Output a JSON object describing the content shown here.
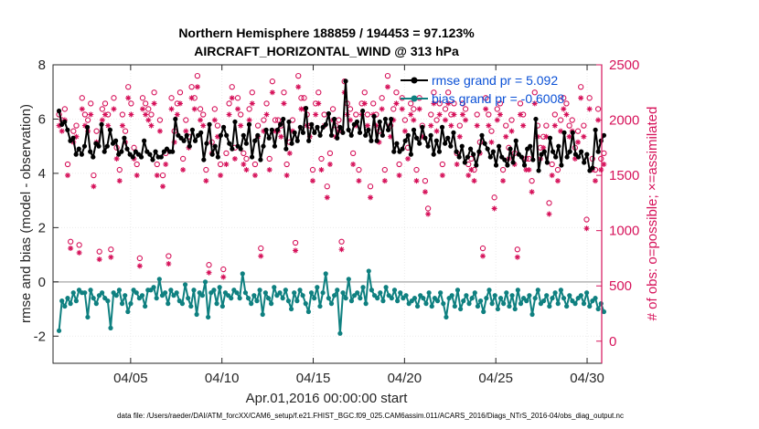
{
  "chart_data": {
    "type": "line",
    "title": [
      "Northern Hemisphere 188859 / 194453 = 97.123%",
      "AIRCRAFT_HORIZONTAL_WIND @ 313 hPa"
    ],
    "xlabel": "Apr.01,2016 00:00:00 start",
    "ylabel_left": "rmse and bias (model - observation)",
    "ylabel_right": "# of obs: o=possible; ×=assimilated",
    "footer": "data file: /Users/raeder/DAI/ATM_forcXX/CAM6_setup/f.e21.FHIST_BGC.f09_025.CAM6assim.011/ACARS_2016/Diags_NTrS_2016-04/obs_diag_output.nc",
    "xlim": [
      0.75,
      30.8
    ],
    "ylim_left": [
      -3,
      8
    ],
    "ylim_right": [
      -200,
      2500
    ],
    "x_ticks": [
      5,
      10,
      15,
      20,
      25,
      30
    ],
    "x_tick_labels": [
      "04/05",
      "04/10",
      "04/15",
      "04/20",
      "04/25",
      "04/30"
    ],
    "y_left_ticks": [
      -2,
      0,
      2,
      4,
      6,
      8
    ],
    "y_left_tick_labels": [
      "-2",
      "0",
      "2",
      "4",
      "6",
      "8"
    ],
    "y_right_ticks": [
      0,
      500,
      1000,
      1500,
      2000,
      2500
    ],
    "y_right_tick_labels": [
      "0",
      "500",
      "1000",
      "1500",
      "2000",
      "2500"
    ],
    "zero_line": 0,
    "colors": {
      "rmse": "#000000",
      "bias": "#0f8080",
      "obs": "#d6125a",
      "legend_text": "#0a50d6",
      "zero": "#b4b4b4"
    },
    "legend": [
      {
        "name": "rmse",
        "label": "rmse grand pr = 5.092"
      },
      {
        "name": "bias",
        "label": "bias grand pr = -0.6008"
      }
    ],
    "series": [
      {
        "name": "rmse",
        "values": [
          6.3,
          5.8,
          5.9,
          5.6,
          5.2,
          5.3,
          4.7,
          4.9,
          4.7,
          5.0,
          5.7,
          4.8,
          4.6,
          5.1,
          5.0,
          5.8,
          4.8,
          5.0,
          5.6,
          5.1,
          5.2,
          4.7,
          4.8,
          5.3,
          4.9,
          4.7,
          4.6,
          4.8,
          4.7,
          4.6,
          5.2,
          4.8,
          4.7,
          4.5,
          4.8,
          4.6,
          4.6,
          4.8,
          4.9,
          4.8,
          4.8,
          6.0,
          5.4,
          5.3,
          5.2,
          5.4,
          5.0,
          5.6,
          5.2,
          5.4,
          5.5,
          4.5,
          5.1,
          5.8,
          4.7,
          5.0,
          4.6,
          5.4,
          5.7,
          5.4,
          5.1,
          4.9,
          5.9,
          5.0,
          4.9,
          5.4,
          5.1,
          5.8,
          4.6,
          5.2,
          5.4,
          4.5,
          5.0,
          5.6,
          5.3,
          5.6,
          5.0,
          5.6,
          5.8,
          6.0,
          4.9,
          5.9,
          5.1,
          5.5,
          5.2,
          5.7,
          5.5,
          6.4,
          5.2,
          5.8,
          5.5,
          5.7,
          5.4,
          5.7,
          5.8,
          6.2,
          5.4,
          6.0,
          5.3,
          5.7,
          5.5,
          7.4,
          5.6,
          5.4,
          5.8,
          5.9,
          5.5,
          6.3,
          5.4,
          5.6,
          5.2,
          6.1,
          5.2,
          5.9,
          5.4,
          6.0,
          5.6,
          6.0,
          4.8,
          5.1,
          4.8,
          4.9,
          5.2,
          5.4,
          4.7,
          5.6,
          5.3,
          5.1,
          5.7,
          5.3,
          5.0,
          5.4,
          4.7,
          5.2,
          4.8,
          5.7,
          5.1,
          5.3,
          5.0,
          5.5,
          4.8,
          4.6,
          5.0,
          4.4,
          4.6,
          4.9,
          4.7,
          4.3,
          4.8,
          5.4,
          5.1,
          4.9,
          4.6,
          4.8,
          4.3,
          5.0,
          4.6,
          4.5,
          4.3,
          4.9,
          4.4,
          5.2,
          4.7,
          4.6,
          4.3,
          4.9,
          5.0,
          4.5,
          6.0,
          4.1,
          4.7,
          4.8,
          4.4,
          5.3,
          4.8,
          4.6,
          5.0,
          4.3,
          5.5,
          4.6,
          4.8,
          5.5,
          4.7,
          4.6,
          4.8,
          4.4,
          4.7,
          4.1,
          4.2,
          5.6,
          4.8,
          5.2,
          5.4
        ]
      },
      {
        "name": "bias",
        "values": [
          -1.8,
          -0.7,
          -0.9,
          -0.6,
          -0.8,
          -0.4,
          -0.7,
          -0.3,
          -0.4,
          -0.4,
          -1.3,
          -0.3,
          -0.6,
          -0.8,
          -0.5,
          -0.4,
          -0.6,
          -0.7,
          -1.7,
          -0.4,
          -0.5,
          -0.3,
          -0.8,
          -0.5,
          -1.1,
          -0.8,
          -0.3,
          -0.4,
          -0.6,
          -0.5,
          -0.9,
          -0.3,
          -0.3,
          -0.2,
          -0.6,
          0.1,
          -0.5,
          -0.4,
          -0.8,
          -0.3,
          -0.5,
          -0.4,
          -0.7,
          -0.8,
          -0.1,
          -0.6,
          -0.9,
          -0.3,
          -1.2,
          -0.4,
          -0.5,
          0.0,
          -1.3,
          -0.4,
          -0.3,
          -0.8,
          -0.2,
          -0.9,
          -0.4,
          -0.5,
          -0.6,
          -0.3,
          -0.4,
          -0.6,
          0.3,
          -0.4,
          -0.6,
          -0.8,
          -0.5,
          -0.7,
          -0.3,
          -1.2,
          -0.4,
          -0.6,
          -0.8,
          -0.2,
          -0.5,
          -0.4,
          -0.6,
          -0.3,
          -0.7,
          -1.0,
          -0.4,
          -0.7,
          -0.3,
          -0.5,
          -0.8,
          -1.1,
          -0.4,
          -0.6,
          -0.2,
          -0.9,
          -0.4,
          0.3,
          -0.6,
          -0.8,
          -0.5,
          -0.3,
          -1.9,
          -0.4,
          -0.6,
          0.1,
          -0.7,
          -0.5,
          -0.4,
          -0.6,
          -0.2,
          -0.8,
          0.4,
          -0.3,
          -0.5,
          -0.6,
          -0.4,
          -0.7,
          -0.2,
          -0.5,
          -0.6,
          -0.3,
          -0.7,
          -0.4,
          -0.6,
          -0.5,
          -0.8,
          -0.7,
          -0.6,
          -0.9,
          -0.5,
          -0.6,
          -0.8,
          -0.4,
          -0.9,
          -0.6,
          -0.7,
          -0.4,
          -0.8,
          -1.3,
          -0.6,
          -0.5,
          -0.9,
          -0.3,
          -1.0,
          -0.7,
          -0.5,
          -0.8,
          -0.6,
          -0.4,
          -0.9,
          -0.7,
          -1.1,
          -0.6,
          -0.3,
          -0.8,
          -0.5,
          -1.0,
          -0.6,
          -0.8,
          -0.4,
          -0.9,
          -0.5,
          -1.0,
          -0.3,
          -0.8,
          -0.6,
          -0.7,
          -0.5,
          -1.2,
          -0.6,
          -0.3,
          -0.8,
          -0.7,
          -0.5,
          -0.9,
          -0.6,
          -0.4,
          -0.8,
          -0.3,
          -0.6,
          -0.9,
          -0.5,
          -0.7,
          -0.8,
          -0.6,
          -0.5,
          -0.8,
          -0.4,
          -0.9,
          -0.7,
          -0.6,
          -1.0,
          -0.8,
          -1.1
        ]
      },
      {
        "name": "obs_possible",
        "marker": "o",
        "values": [
          2050,
          2000,
          2100,
          1600,
          900,
          1900,
          1950,
          870,
          2200,
          2050,
          2000,
          2150,
          1500,
          1900,
          810,
          2100,
          2150,
          2050,
          830,
          2200,
          1750,
          1550,
          2050,
          1900,
          2300,
          2150,
          1750,
          1600,
          750,
          2200,
          2150,
          2100,
          2050,
          2250,
          1600,
          2000,
          1500,
          1700,
          770,
          2200,
          1900,
          2150,
          2250,
          1650,
          2000,
          1850,
          2300,
          2200,
          2400,
          2100,
          2050,
          1550,
          690,
          1800,
          2100,
          1950,
          1600,
          650,
          1700,
          2150,
          2300,
          1750,
          2200,
          2050,
          1700,
          1650,
          2100,
          2250,
          1600,
          1950,
          840,
          2000,
          2150,
          1650,
          2350,
          2000,
          2000,
          1950,
          2250,
          1600,
          1800,
          2000,
          890,
          2400,
          2200,
          2200,
          2050,
          1950,
          1550,
          2150,
          2250,
          1650,
          2050,
          1400,
          1700,
          2100,
          1950,
          2000,
          900,
          2350,
          2150,
          2100,
          1700,
          2050,
          1550,
          2150,
          2250,
          2050,
          1400,
          2150,
          2050,
          1900,
          2200,
          1550,
          2400,
          1950,
          2100,
          2250,
          1600,
          2200,
          2000,
          1750,
          2150,
          2100,
          1550,
          2200,
          1950,
          1450,
          1200,
          2050,
          2250,
          2000,
          2150,
          1600,
          2100,
          2250,
          2050,
          2150,
          1700,
          1950,
          2150,
          2100,
          1600,
          1650,
          1550,
          2050,
          1800,
          840,
          2200,
          2050,
          1900,
          1300,
          2100,
          2150,
          1550,
          1950,
          1750,
          2000,
          1700,
          830,
          2150,
          2050,
          1650,
          1650,
          1450,
          2250,
          1950,
          1750,
          1850,
          1950,
          1250,
          1600,
          2050,
          1550,
          2000,
          2200,
          2150,
          1950,
          2000,
          1750,
          1900,
          2300,
          1950,
          1100,
          2200,
          1650,
          1550,
          2100,
          1650,
          1700
        ]
      },
      {
        "name": "obs_assimilated",
        "marker": "x",
        "values": [
          1950,
          1900,
          2000,
          1500,
          840,
          1800,
          1850,
          800,
          2100,
          1950,
          1900,
          2050,
          1400,
          1800,
          740,
          2000,
          2050,
          1950,
          760,
          2100,
          1650,
          1450,
          1950,
          1800,
          2200,
          2050,
          1650,
          1500,
          680,
          2100,
          2050,
          2000,
          1950,
          2150,
          1500,
          1900,
          1400,
          1600,
          700,
          2100,
          1800,
          2050,
          2150,
          1550,
          1900,
          1750,
          2200,
          2100,
          2300,
          2000,
          1950,
          1450,
          620,
          1700,
          2000,
          1850,
          1500,
          580,
          1600,
          2050,
          2200,
          1650,
          2100,
          1950,
          1600,
          1550,
          2000,
          2150,
          1500,
          1850,
          770,
          1900,
          2050,
          1550,
          2250,
          1900,
          1900,
          1850,
          2150,
          1500,
          1700,
          1900,
          820,
          2300,
          2100,
          2100,
          1950,
          1850,
          1450,
          2050,
          2150,
          1550,
          1950,
          1300,
          1600,
          2000,
          1850,
          1900,
          830,
          2250,
          2050,
          2000,
          1600,
          1950,
          1450,
          2050,
          2150,
          1950,
          1300,
          2050,
          1950,
          1800,
          2100,
          1450,
          2300,
          1850,
          2000,
          2150,
          1500,
          2100,
          1900,
          1650,
          2050,
          2000,
          1450,
          2100,
          1850,
          1350,
          1150,
          1950,
          2150,
          1900,
          2050,
          1500,
          2000,
          2150,
          1950,
          2050,
          1600,
          1850,
          2050,
          2000,
          1500,
          1550,
          1450,
          1950,
          1700,
          770,
          2100,
          1950,
          1800,
          1200,
          2000,
          2050,
          1450,
          1850,
          1650,
          1900,
          1600,
          760,
          2050,
          1950,
          1550,
          1550,
          1350,
          2150,
          1850,
          1650,
          1750,
          1850,
          1150,
          1500,
          1950,
          1450,
          1900,
          2100,
          2050,
          1850,
          1900,
          1650,
          1800,
          2200,
          1850,
          1020,
          2100,
          1550,
          1450,
          2000,
          1550,
          1600
        ]
      }
    ]
  }
}
